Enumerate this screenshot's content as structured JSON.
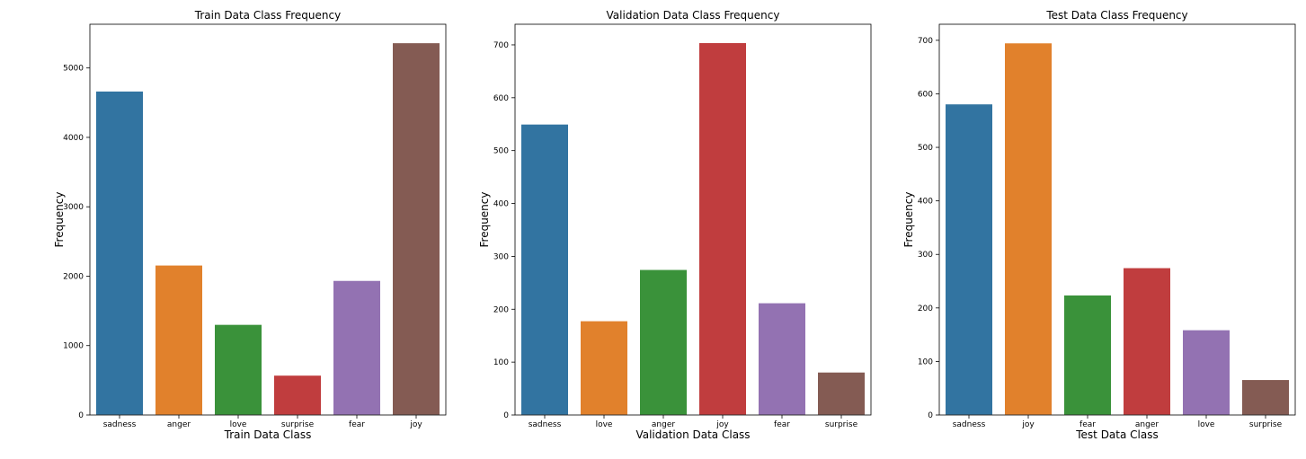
{
  "chart_data": [
    {
      "type": "bar",
      "title": "Train Data Class Frequency",
      "xlabel": "Train Data Class",
      "ylabel": "Frequency",
      "categories": [
        "sadness",
        "anger",
        "love",
        "surprise",
        "fear",
        "joy"
      ],
      "values": [
        4666,
        2159,
        1304,
        572,
        1937,
        5362
      ],
      "colors": [
        "#3274a1",
        "#e1812c",
        "#3a923a",
        "#c03d3e",
        "#9372b2",
        "#845b53"
      ],
      "ylim": [
        0,
        5630
      ],
      "yticks": [
        0,
        1000,
        2000,
        3000,
        4000,
        5000
      ],
      "grid": false
    },
    {
      "type": "bar",
      "title": "Validation Data Class Frequency",
      "xlabel": "Validation Data Class",
      "ylabel": "Frequency",
      "categories": [
        "sadness",
        "love",
        "anger",
        "joy",
        "fear",
        "surprise"
      ],
      "values": [
        550,
        178,
        275,
        704,
        212,
        81
      ],
      "colors": [
        "#3274a1",
        "#e1812c",
        "#3a923a",
        "#c03d3e",
        "#9372b2",
        "#845b53"
      ],
      "ylim": [
        0,
        739
      ],
      "yticks": [
        0,
        100,
        200,
        300,
        400,
        500,
        600,
        700
      ],
      "grid": false
    },
    {
      "type": "bar",
      "title": "Test Data Class Frequency",
      "xlabel": "Test Data Class",
      "ylabel": "Frequency",
      "categories": [
        "sadness",
        "joy",
        "fear",
        "anger",
        "love",
        "surprise"
      ],
      "values": [
        581,
        695,
        224,
        275,
        159,
        66
      ],
      "colors": [
        "#3274a1",
        "#e1812c",
        "#3a923a",
        "#c03d3e",
        "#9372b2",
        "#845b53"
      ],
      "ylim": [
        0,
        730
      ],
      "yticks": [
        0,
        100,
        200,
        300,
        400,
        500,
        600,
        700
      ],
      "grid": false
    }
  ]
}
